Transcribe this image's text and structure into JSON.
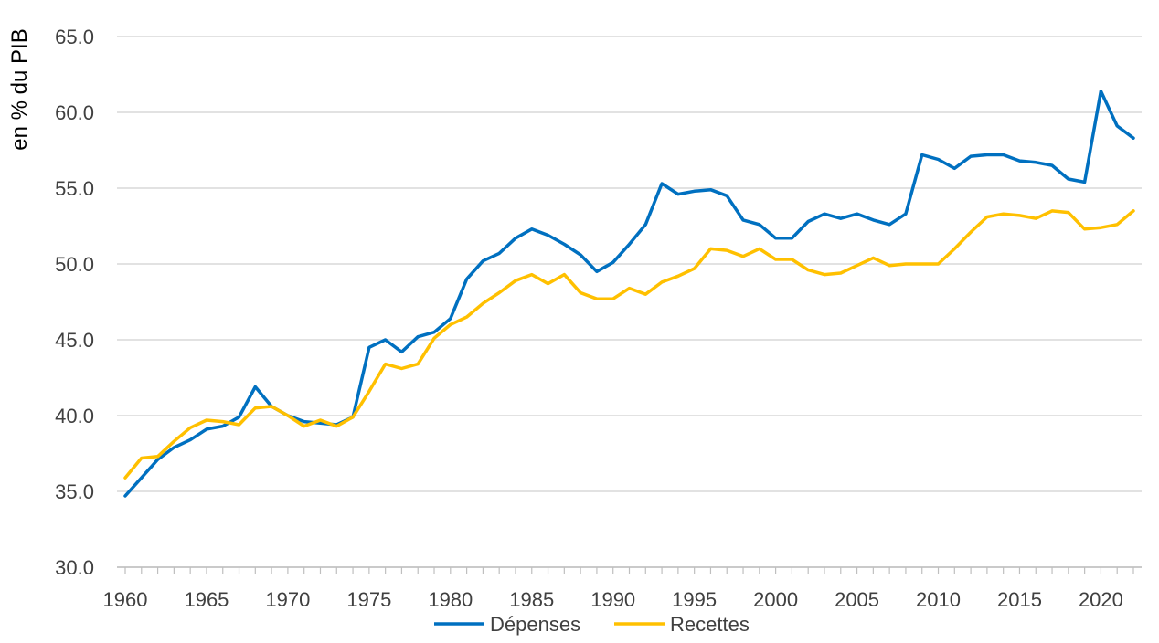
{
  "chart_data": {
    "type": "line",
    "title": "",
    "xlabel": "",
    "ylabel": "en % du PIB",
    "xlim": [
      1960,
      2022
    ],
    "ylim": [
      30,
      65
    ],
    "x_ticks": [
      1960,
      1965,
      1970,
      1975,
      1980,
      1985,
      1990,
      1995,
      2000,
      2005,
      2010,
      2015,
      2020
    ],
    "y_ticks": [
      "30.0",
      "35.0",
      "40.0",
      "45.0",
      "50.0",
      "55.0",
      "60.0",
      "65.0"
    ],
    "grid": "horizontal",
    "legend_position": "bottom",
    "x": [
      1960,
      1961,
      1962,
      1963,
      1964,
      1965,
      1966,
      1967,
      1968,
      1969,
      1970,
      1971,
      1972,
      1973,
      1974,
      1975,
      1976,
      1977,
      1978,
      1979,
      1980,
      1981,
      1982,
      1983,
      1984,
      1985,
      1986,
      1987,
      1988,
      1989,
      1990,
      1991,
      1992,
      1993,
      1994,
      1995,
      1996,
      1997,
      1998,
      1999,
      2000,
      2001,
      2002,
      2003,
      2004,
      2005,
      2006,
      2007,
      2008,
      2009,
      2010,
      2011,
      2012,
      2013,
      2014,
      2015,
      2016,
      2017,
      2018,
      2019,
      2020,
      2021,
      2022
    ],
    "series": [
      {
        "name": "Dépenses",
        "color": "#0070c0",
        "values": [
          34.7,
          35.9,
          37.1,
          37.9,
          38.4,
          39.1,
          39.3,
          39.9,
          41.9,
          40.6,
          40.0,
          39.6,
          39.5,
          39.4,
          39.9,
          44.5,
          45.0,
          44.2,
          45.2,
          45.5,
          46.4,
          49.0,
          50.2,
          50.7,
          51.7,
          52.3,
          51.9,
          51.3,
          50.6,
          49.5,
          50.1,
          51.3,
          52.6,
          55.3,
          54.6,
          54.8,
          54.9,
          54.5,
          52.9,
          52.6,
          51.7,
          51.7,
          52.8,
          53.3,
          53.0,
          53.3,
          52.9,
          52.6,
          53.3,
          57.2,
          56.9,
          56.3,
          57.1,
          57.2,
          57.2,
          56.8,
          56.7,
          56.5,
          55.6,
          55.4,
          61.4,
          59.1,
          58.3
        ]
      },
      {
        "name": "Recettes",
        "color": "#ffc000",
        "values": [
          35.9,
          37.2,
          37.3,
          38.3,
          39.2,
          39.7,
          39.6,
          39.4,
          40.5,
          40.6,
          40.0,
          39.3,
          39.7,
          39.3,
          39.9,
          41.6,
          43.4,
          43.1,
          43.4,
          45.1,
          46.0,
          46.5,
          47.4,
          48.1,
          48.9,
          49.3,
          48.7,
          49.3,
          48.1,
          47.7,
          47.7,
          48.4,
          48.0,
          48.8,
          49.2,
          49.7,
          51.0,
          50.9,
          50.5,
          51.0,
          50.3,
          50.3,
          49.6,
          49.3,
          49.4,
          49.9,
          50.4,
          49.9,
          50.0,
          50.0,
          50.0,
          51.0,
          52.1,
          53.1,
          53.3,
          53.2,
          53.0,
          53.5,
          53.4,
          52.3,
          52.4,
          52.6,
          53.5
        ]
      }
    ]
  }
}
